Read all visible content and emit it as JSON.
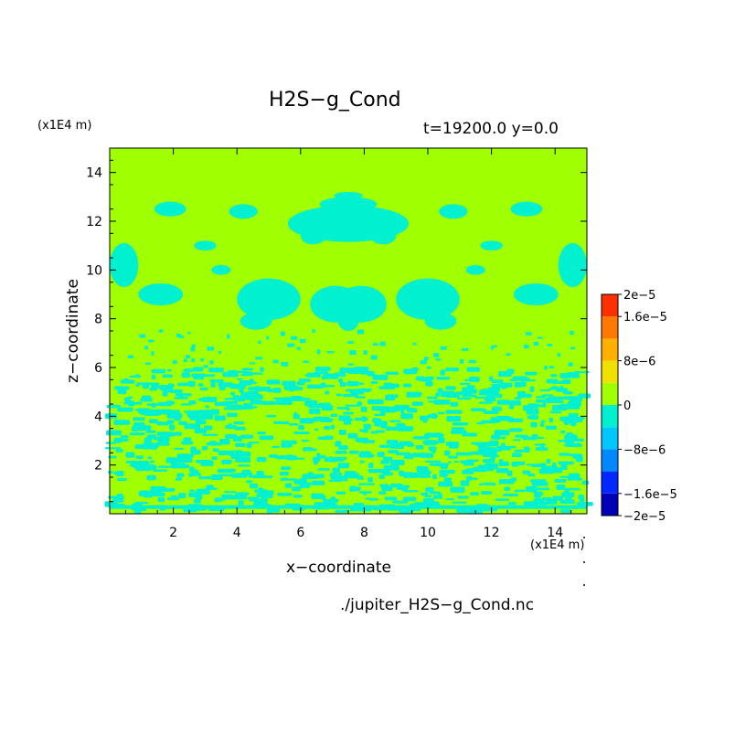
{
  "chart_data": {
    "type": "heatmap",
    "title": "H2S−g_Cond",
    "subtitle": "t=19200.0 y=0.0",
    "xlabel": "x−coordinate",
    "ylabel": "z−coordinate",
    "x_scale_label": "(x1E4 m)",
    "y_scale_label": "(x1E4 m)",
    "footer": "./jupiter_H2S−g_Cond.nc",
    "xlim": [
      0,
      15
    ],
    "ylim": [
      0,
      15
    ],
    "x_ticks": [
      2,
      4,
      6,
      8,
      10,
      12,
      14
    ],
    "y_ticks": [
      2,
      4,
      6,
      8,
      10,
      12,
      14
    ],
    "colorbar": {
      "range": [
        -2e-05,
        2e-05
      ],
      "levels": [
        -2e-05,
        -1.6e-05,
        -1.2e-05,
        -8e-06,
        -4e-06,
        0,
        4e-06,
        8e-06,
        1.2e-05,
        1.6e-05,
        2e-05
      ],
      "colors": [
        "#0000b4",
        "#0028ff",
        "#0088ff",
        "#00c8ff",
        "#00f0d0",
        "#a0ff00",
        "#f0e000",
        "#ffb000",
        "#ff7800",
        "#ff3000",
        "#ff4a4a"
      ],
      "tick_labels": [
        "2e−5",
        "1.6e−5",
        "8e−6",
        "0",
        "−8e−6",
        "−1.6e−5",
        "−2e−5"
      ],
      "tick_values": [
        2e-05,
        1.6e-05,
        8e-06,
        0,
        -8e-06,
        -1.6e-05,
        -2e-05
      ]
    },
    "field_summary": {
      "dominant_value": 0,
      "secondary_value": -4e-06,
      "lower_mixed_layer_top_z": 6,
      "upper_patches_z_range": [
        7.5,
        13.5
      ]
    }
  }
}
